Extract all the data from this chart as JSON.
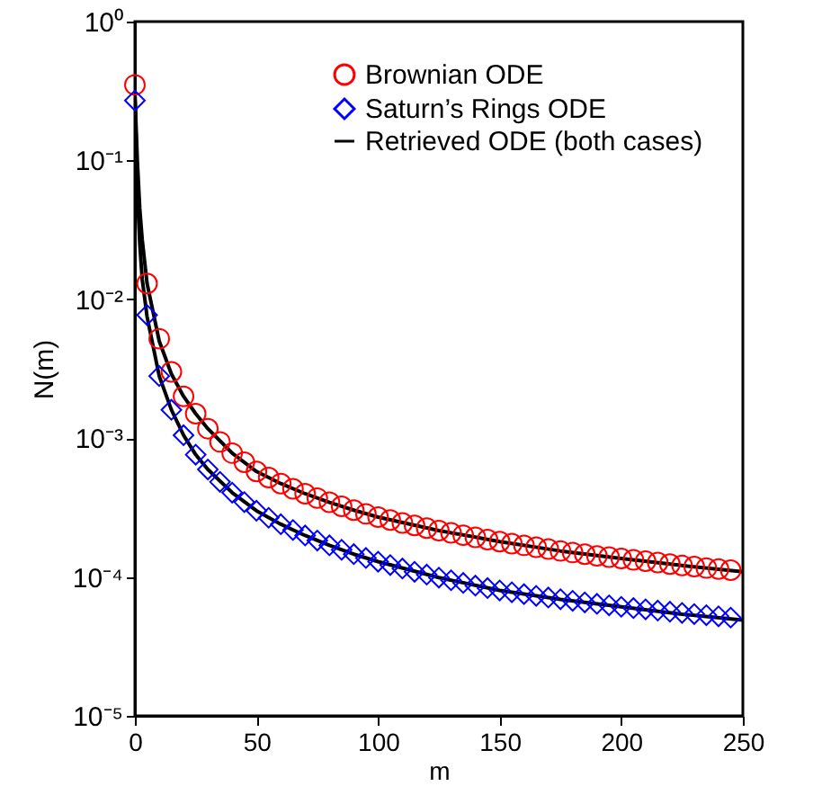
{
  "chart_data": {
    "type": "scatter",
    "xlabel": "m",
    "ylabel": "N(m)",
    "log": "y",
    "legend": "top right",
    "grid": false,
    "xlim": [
      0,
      250
    ],
    "xticks": [
      0,
      50,
      100,
      150,
      200,
      250
    ],
    "ylim": [
      1e-05,
      1
    ],
    "yticks": [
      {
        "value": 1,
        "label": "10⁰"
      },
      {
        "value": 0.1,
        "label": "10⁻¹"
      },
      {
        "value": 0.01,
        "label": "10⁻²"
      },
      {
        "value": 0.001,
        "label": "10⁻³"
      },
      {
        "value": 0.0001,
        "label": "10⁻⁴"
      },
      {
        "value": 1e-05,
        "label": "10⁻⁵"
      }
    ],
    "x": [
      0,
      5,
      10,
      15,
      20,
      25,
      30,
      35,
      40,
      45,
      50,
      55,
      60,
      65,
      70,
      75,
      80,
      85,
      90,
      95,
      100,
      105,
      110,
      115,
      120,
      125,
      130,
      135,
      140,
      145,
      150,
      155,
      160,
      165,
      170,
      175,
      180,
      185,
      190,
      195,
      200,
      205,
      210,
      215,
      220,
      225,
      230,
      235,
      240,
      245
    ],
    "series": [
      {
        "name": "Brownian ODE",
        "marker": "circle",
        "color": "#ff0000",
        "values": [
          0.35,
          0.013,
          0.0052,
          0.003,
          0.002,
          0.0015,
          0.00117,
          0.00094,
          0.00078,
          0.00067,
          0.000575,
          0.00052,
          0.000471,
          0.000432,
          0.000398,
          0.00037,
          0.000345,
          0.000323,
          0.000303,
          0.000285,
          0.00027,
          0.000257,
          0.000245,
          0.000235,
          0.000225,
          0.000216,
          0.000208,
          0.0002,
          0.000193,
          0.000186,
          0.00018,
          0.000174,
          0.000169,
          0.000164,
          0.000159,
          0.000154,
          0.00015,
          0.000146,
          0.000142,
          0.000139,
          0.000136,
          0.000133,
          0.00013,
          0.000127,
          0.000124,
          0.000121,
          0.000119,
          0.000116,
          0.000114,
          0.000112
        ]
      },
      {
        "name": "Saturn’s Rings ODE",
        "marker": "diamond",
        "color": "#0000ff",
        "values": [
          0.27,
          0.0077,
          0.0028,
          0.0016,
          0.00105,
          0.00076,
          0.000595,
          0.000484,
          0.000405,
          0.000346,
          0.0003,
          0.000267,
          0.00024,
          0.000218,
          0.000199,
          0.000183,
          0.000169,
          0.000157,
          0.000146,
          0.000137,
          0.000129,
          0.000122,
          0.000115,
          0.000109,
          0.000104,
          9.9e-05,
          9.47e-05,
          9.06e-05,
          8.67e-05,
          8.32e-05,
          8e-05,
          7.76e-05,
          7.53e-05,
          7.32e-05,
          7.11e-05,
          6.92e-05,
          6.74e-05,
          6.57e-05,
          6.41e-05,
          6.25e-05,
          6.1e-05,
          5.97e-05,
          5.85e-05,
          5.73e-05,
          5.62e-05,
          5.51e-05,
          5.41e-05,
          5.31e-05,
          5.21e-05,
          5.1e-05
        ]
      },
      {
        "name": "Retrieved ODE (both cases)",
        "type": "line",
        "color": "#000000",
        "x": [
          0,
          1,
          2,
          3,
          5,
          10,
          15,
          20,
          25,
          30,
          40,
          50,
          60,
          70,
          80,
          90,
          100,
          125,
          150,
          175,
          200,
          225,
          250
        ],
        "values": [
          0.3,
          0.1,
          0.045,
          0.027,
          0.013,
          0.005,
          0.0029,
          0.002,
          0.0015,
          0.00117,
          0.00078,
          0.000575,
          0.000471,
          0.000398,
          0.000345,
          0.000303,
          0.00027,
          0.000216,
          0.00018,
          0.000154,
          0.000136,
          0.000121,
          0.000109
        ]
      },
      {
        "type": "line",
        "color": "#000000",
        "x": [
          0,
          1,
          2,
          3,
          5,
          10,
          15,
          20,
          25,
          30,
          40,
          50,
          60,
          70,
          80,
          90,
          100,
          125,
          150,
          175,
          200,
          225,
          250
        ],
        "values": [
          0.3,
          0.06,
          0.025,
          0.014,
          0.0075,
          0.0028,
          0.0016,
          0.00105,
          0.00076,
          0.000595,
          0.000405,
          0.0003,
          0.00024,
          0.000199,
          0.000169,
          0.000146,
          0.000129,
          9.9e-05,
          8e-05,
          6.9e-05,
          6.1e-05,
          5.4e-05,
          4.9e-05
        ]
      }
    ]
  }
}
